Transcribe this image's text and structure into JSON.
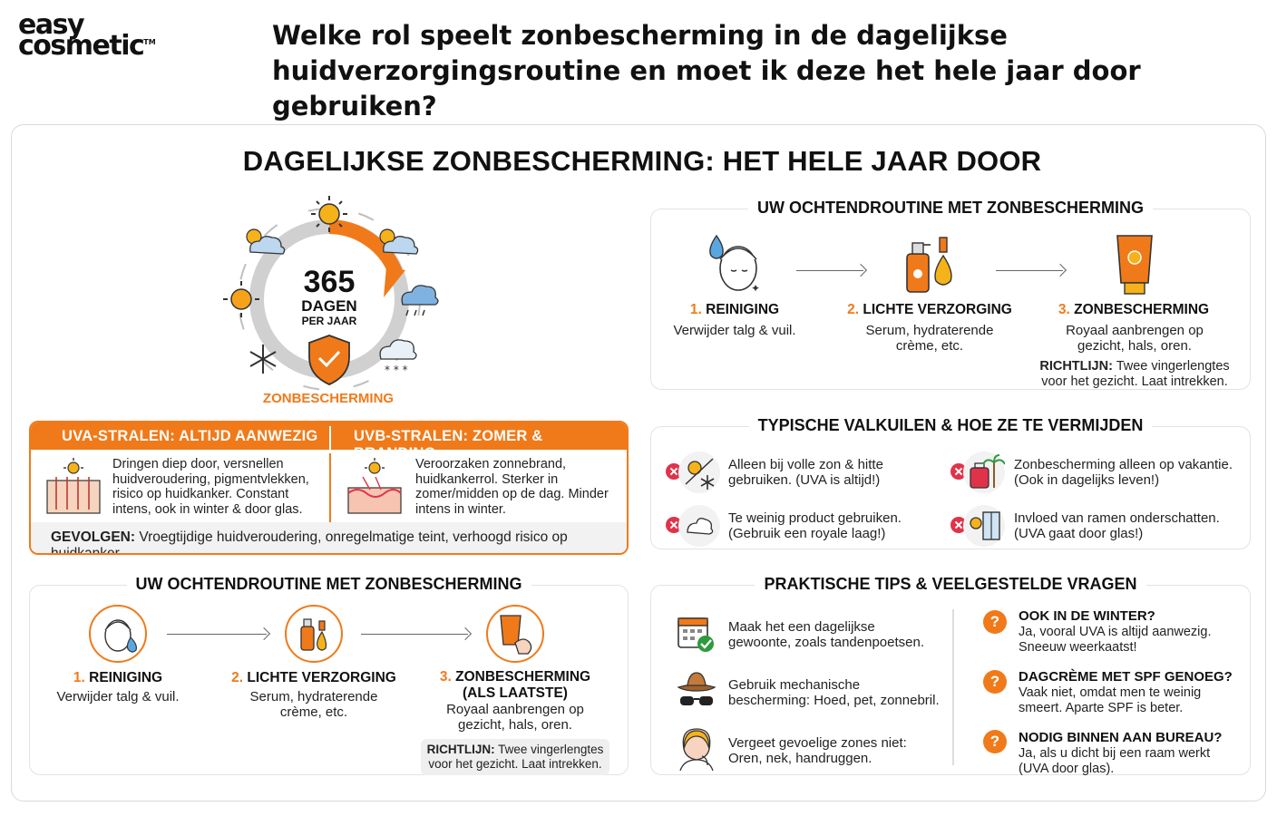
{
  "brand": {
    "line1": "easy",
    "line2": "cosmetic",
    "tm": "TM"
  },
  "question": "Welke rol speelt zonbescherming in de dagelijkse huidverzorgingsroutine en moet ik deze het hele jaar door gebruiken?",
  "main_title": "DAGELIJKSE ZONBESCHERMING: HET HELE JAAR DOOR",
  "cycle": {
    "number": "365",
    "line1": "DAGEN",
    "line2": "PER JAAR",
    "caption": "ZONBESCHERMING",
    "icons": [
      "sun-icon",
      "sun-cloud-icon",
      "rain-cloud-icon",
      "snow-cloud-icon",
      "snowflake-icon",
      "sun-icon",
      "sun-cloud-icon"
    ]
  },
  "routine_top": {
    "title": "UW OCHTENDROUTINE MET ZONBESCHERMING",
    "steps": [
      {
        "num": "1.",
        "label": "REINIGING",
        "desc": "Verwijder talg & vuil.",
        "icon": "face-wash-icon"
      },
      {
        "num": "2.",
        "label": "LICHTE VERZORGING",
        "desc": "Serum, hydraterende crème, etc.",
        "icon": "serum-bottles-icon"
      },
      {
        "num": "3.",
        "label": "ZONBESCHERMING",
        "desc": "Royaal aanbrengen op gezicht, hals, oren.",
        "icon": "sunscreen-tube-icon"
      }
    ],
    "guideline_label": "RICHTLIJN:",
    "guideline_text": "Twee vingerlengtes voor het gezicht. Laat intrekken."
  },
  "uv": {
    "uva_title": "UVA-STRALEN: ALTIJD AANWEZIG",
    "uva_text": "Dringen diep door, versnellen huidveroudering, pigmentvlekken, risico op huidkanker. Constant intens, ook in winter & door glas.",
    "uvb_title": "UVB-STRALEN: ZOMER & BRANDING",
    "uvb_text": "Veroorzaken zonnebrand, huidkankerrol. Sterker in zomer/midden op de dag. Minder intens in winter.",
    "consequence_label": "GEVOLGEN:",
    "consequence_text": "Vroegtijdige huidveroudering, onregelmatige teint, verhoogd risico op huidkanker."
  },
  "pitfalls": {
    "title": "TYPISCHE VALKUILEN & HOE ZE TE VERMIJDEN",
    "items": [
      {
        "line1": "Alleen bij volle zon & hitte",
        "line2": "gebruiken. (UVA is altijd!)",
        "icon": "sun-snow-icon"
      },
      {
        "line1": "Zonbescherming alleen op vakantie.",
        "line2": "(Ook in dagelijks leven!)",
        "icon": "suitcase-palm-icon"
      },
      {
        "line1": "Te weinig product gebruiken.",
        "line2": "(Gebruik een royale laag!)",
        "icon": "cream-dollop-icon"
      },
      {
        "line1": "Invloed van ramen onderschatten.",
        "line2": "(UVA gaat door glas!)",
        "icon": "window-sun-icon"
      }
    ]
  },
  "routine_bottom": {
    "title": "UW OCHTENDROUTINE MET ZONBESCHERMING",
    "steps": [
      {
        "num": "1.",
        "label": "REINIGING",
        "desc": "Verwijder talg & vuil.",
        "icon": "face-wash-icon"
      },
      {
        "num": "2.",
        "label": "LICHTE VERZORGING",
        "desc": "Serum, hydraterende crème, etc.",
        "icon": "serum-bottles-icon"
      },
      {
        "num": "3.",
        "label": "ZONBESCHERMING",
        "label2": "(ALS LAATSTE)",
        "desc": "Royaal aanbrengen op gezicht, hals, oren.",
        "icon": "sunscreen-apply-icon"
      }
    ],
    "guideline_label": "RICHTLIJN:",
    "guideline_text_1": "Twee vingerlengtes",
    "guideline_text_2": "voor het gezicht. Laat intrekken."
  },
  "tips": {
    "title": "PRAKTISCHE TIPS & VEELGESTELDE VRAGEN",
    "items": [
      {
        "line1": "Maak het een dagelijkse",
        "line2": "gewoonte, zoals tandenpoetsen.",
        "icon": "calendar-check-icon"
      },
      {
        "line1": "Gebruik mechanische",
        "line2": "bescherming: Hoed, pet, zonnebril.",
        "icon": "hat-sunglasses-icon"
      },
      {
        "line1": "Vergeet gevoelige zones niet:",
        "line2": "Oren, nek, handruggen.",
        "icon": "woman-neck-icon"
      }
    ],
    "faq": [
      {
        "q": "OOK IN DE WINTER?",
        "a1": "Ja, vooral UVA is altijd aanwezig.",
        "a2": "Sneeuw weerkaatst!"
      },
      {
        "q": "DAGCRÈME MET SPF GENOEG?",
        "a1": "Vaak niet, omdat men te weinig",
        "a2": "smeert. Aparte SPF is beter."
      },
      {
        "q": "NODIG BINNEN AAN BUREAU?",
        "a1": "Ja, als u dicht bij een raam werkt",
        "a2": "(UVA door glas)."
      }
    ]
  },
  "colors": {
    "accent": "#f07a1a",
    "danger": "#e0334a",
    "text": "#1a1a1a"
  }
}
